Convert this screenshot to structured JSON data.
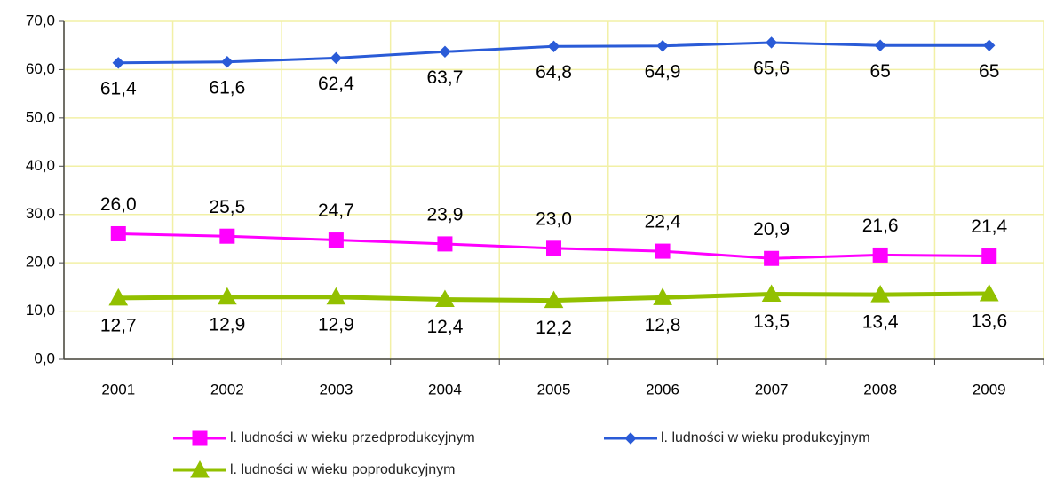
{
  "chart_data": {
    "type": "line",
    "categories": [
      "2001",
      "2002",
      "2003",
      "2004",
      "2005",
      "2006",
      "2007",
      "2008",
      "2009"
    ],
    "series": [
      {
        "name": "l. ludności w wieku przedprodukcyjnym",
        "color": "#ff00ff",
        "marker": "square",
        "values": [
          26.0,
          25.5,
          24.7,
          23.9,
          23.0,
          22.4,
          20.9,
          21.6,
          21.4
        ],
        "value_labels": [
          "26,0",
          "25,5",
          "24,7",
          "23,9",
          "23,0",
          "22,4",
          "20,9",
          "21,6",
          "21,4"
        ]
      },
      {
        "name": "l. ludności w wieku produkcyjnym",
        "color": "#2a5bd7",
        "marker": "diamond",
        "values": [
          61.4,
          61.6,
          62.4,
          63.7,
          64.8,
          64.9,
          65.6,
          65,
          65
        ],
        "value_labels": [
          "61,4",
          "61,6",
          "62,4",
          "63,7",
          "64,8",
          "64,9",
          "65,6",
          "65",
          "65"
        ]
      },
      {
        "name": "l. ludności w wieku poprodukcyjnym",
        "color": "#92c000",
        "marker": "triangle",
        "values": [
          12.7,
          12.9,
          12.9,
          12.4,
          12.2,
          12.8,
          13.5,
          13.4,
          13.6
        ],
        "value_labels": [
          "12,7",
          "12,9",
          "12,9",
          "12,4",
          "12,2",
          "12,8",
          "13,5",
          "13,4",
          "13,6"
        ]
      }
    ],
    "ylim": [
      0,
      70
    ],
    "yticks": [
      {
        "value": 0,
        "label": "0,0"
      },
      {
        "value": 10,
        "label": "10,0"
      },
      {
        "value": 20,
        "label": "20,0"
      },
      {
        "value": 30,
        "label": "30,0"
      },
      {
        "value": 40,
        "label": "40,0"
      },
      {
        "value": 50,
        "label": "50,0"
      },
      {
        "value": 60,
        "label": "60,0"
      },
      {
        "value": 70,
        "label": "70,0"
      }
    ],
    "grid": true,
    "grid_color": "#f2f0a6",
    "legend": "bottom"
  }
}
